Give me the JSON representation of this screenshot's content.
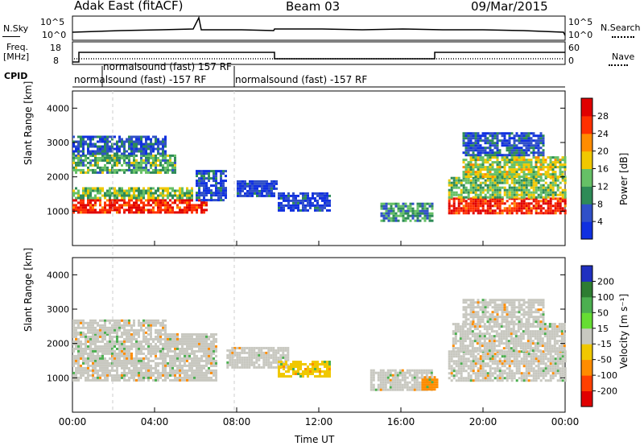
{
  "header": {
    "station": "Adak East (fitACF)",
    "beam": "Beam 03",
    "date": "09/Mar/2015"
  },
  "strip_labels": {
    "nsky_label": "N.Sky",
    "nsky_ticks": [
      "10^5",
      "10^0"
    ],
    "nsearch_label": "N.Search",
    "nsearch_ticks": [
      "10^5",
      "10^0"
    ],
    "freq_label": "Freq.",
    "freq_unit": "[MHz]",
    "freq_ticks": [
      "18",
      "8"
    ],
    "nave_label": "Nave",
    "nave_ticks": [
      "60",
      "0"
    ],
    "cpid_label": "CPID",
    "cpid_entries": [
      "normalsound (fast) 157 RF",
      "normalsound (fast) -157 RF",
      "normalsound (fast) -157 RF"
    ]
  },
  "chart_data": [
    {
      "type": "heatmap",
      "title": "Power",
      "ylabel": "Slant Range [km]",
      "ylim": [
        0,
        4500
      ],
      "yticks": [
        "1000",
        "2000",
        "3000",
        "4000"
      ],
      "colorbar_label": "Power [dB]",
      "colorbar_ticks": [
        "4",
        "8",
        "12",
        "16",
        "20",
        "24",
        "28"
      ],
      "colorscale": [
        "#1030e0",
        "#3050c8",
        "#2e8b57",
        "#66c066",
        "#f0c800",
        "#ff8c00",
        "#ff3000",
        "#e00000"
      ],
      "bands": [
        {
          "t_start": 0.0,
          "t_end": 6.5,
          "r_low": 950,
          "r_high": 1350,
          "level": 28
        },
        {
          "t_start": 0.0,
          "t_end": 5.8,
          "r_low": 1350,
          "r_high": 1700,
          "level": 14
        },
        {
          "t_start": 0.0,
          "t_end": 5.0,
          "r_low": 2100,
          "r_high": 2650,
          "level": 12
        },
        {
          "t_start": 0.0,
          "t_end": 4.5,
          "r_low": 2650,
          "r_high": 3200,
          "level": 6
        },
        {
          "t_start": 6.0,
          "t_end": 7.5,
          "r_low": 1300,
          "r_high": 2200,
          "level": 5
        },
        {
          "t_start": 8.0,
          "t_end": 10.0,
          "r_low": 1450,
          "r_high": 1900,
          "level": 4
        },
        {
          "t_start": 10.0,
          "t_end": 12.5,
          "r_low": 1050,
          "r_high": 1550,
          "level": 4
        },
        {
          "t_start": 15.0,
          "t_end": 17.5,
          "r_low": 700,
          "r_high": 1250,
          "level": 10
        },
        {
          "t_start": 18.3,
          "t_end": 24.0,
          "r_low": 950,
          "r_high": 1400,
          "level": 28
        },
        {
          "t_start": 18.3,
          "t_end": 24.0,
          "r_low": 1400,
          "r_high": 2000,
          "level": 14
        },
        {
          "t_start": 19.0,
          "t_end": 24.0,
          "r_low": 2000,
          "r_high": 2600,
          "level": 16
        },
        {
          "t_start": 19.0,
          "t_end": 23.0,
          "r_low": 2600,
          "r_high": 3300,
          "level": 6
        }
      ]
    },
    {
      "type": "heatmap",
      "title": "Velocity",
      "xlabel": "Time UT",
      "ylabel": "Slant Range [km]",
      "xlim": [
        0,
        24
      ],
      "xticks": [
        "00:00",
        "04:00",
        "08:00",
        "12:00",
        "16:00",
        "20:00",
        "00:00"
      ],
      "ylim": [
        0,
        4500
      ],
      "yticks": [
        "1000",
        "2000",
        "3000",
        "4000"
      ],
      "colorbar_label": "Velocity [m s⁻¹]",
      "colorbar_ticks": [
        "200",
        "100",
        "50",
        "15",
        "-15",
        "-50",
        "-100",
        "-200"
      ],
      "colorscale": [
        "#2030c0",
        "#2e7d32",
        "#4caf50",
        "#66dd33",
        "#c8c8c0",
        "#f0c800",
        "#ff8c00",
        "#ff4000",
        "#e00000"
      ],
      "bands": [
        {
          "t_start": 0.0,
          "t_end": 7.0,
          "r_low": 950,
          "r_high": 2300,
          "level": 0
        },
        {
          "t_start": 0.0,
          "t_end": 4.5,
          "r_low": 2300,
          "r_high": 2700,
          "level": 0
        },
        {
          "t_start": 7.5,
          "t_end": 10.5,
          "r_low": 1300,
          "r_high": 1900,
          "level": 0
        },
        {
          "t_start": 10.0,
          "t_end": 12.5,
          "r_low": 1050,
          "r_high": 1500,
          "level": -20
        },
        {
          "t_start": 14.5,
          "t_end": 17.5,
          "r_low": 650,
          "r_high": 1250,
          "level": 0
        },
        {
          "t_start": 17.0,
          "t_end": 17.8,
          "r_low": 650,
          "r_high": 1050,
          "level": -100
        },
        {
          "t_start": 18.3,
          "t_end": 24.0,
          "r_low": 950,
          "r_high": 1800,
          "level": 0
        },
        {
          "t_start": 18.5,
          "t_end": 24.0,
          "r_low": 1800,
          "r_high": 2600,
          "level": 0
        },
        {
          "t_start": 19.0,
          "t_end": 23.0,
          "r_low": 2600,
          "r_high": 3300,
          "level": 0
        }
      ]
    }
  ]
}
